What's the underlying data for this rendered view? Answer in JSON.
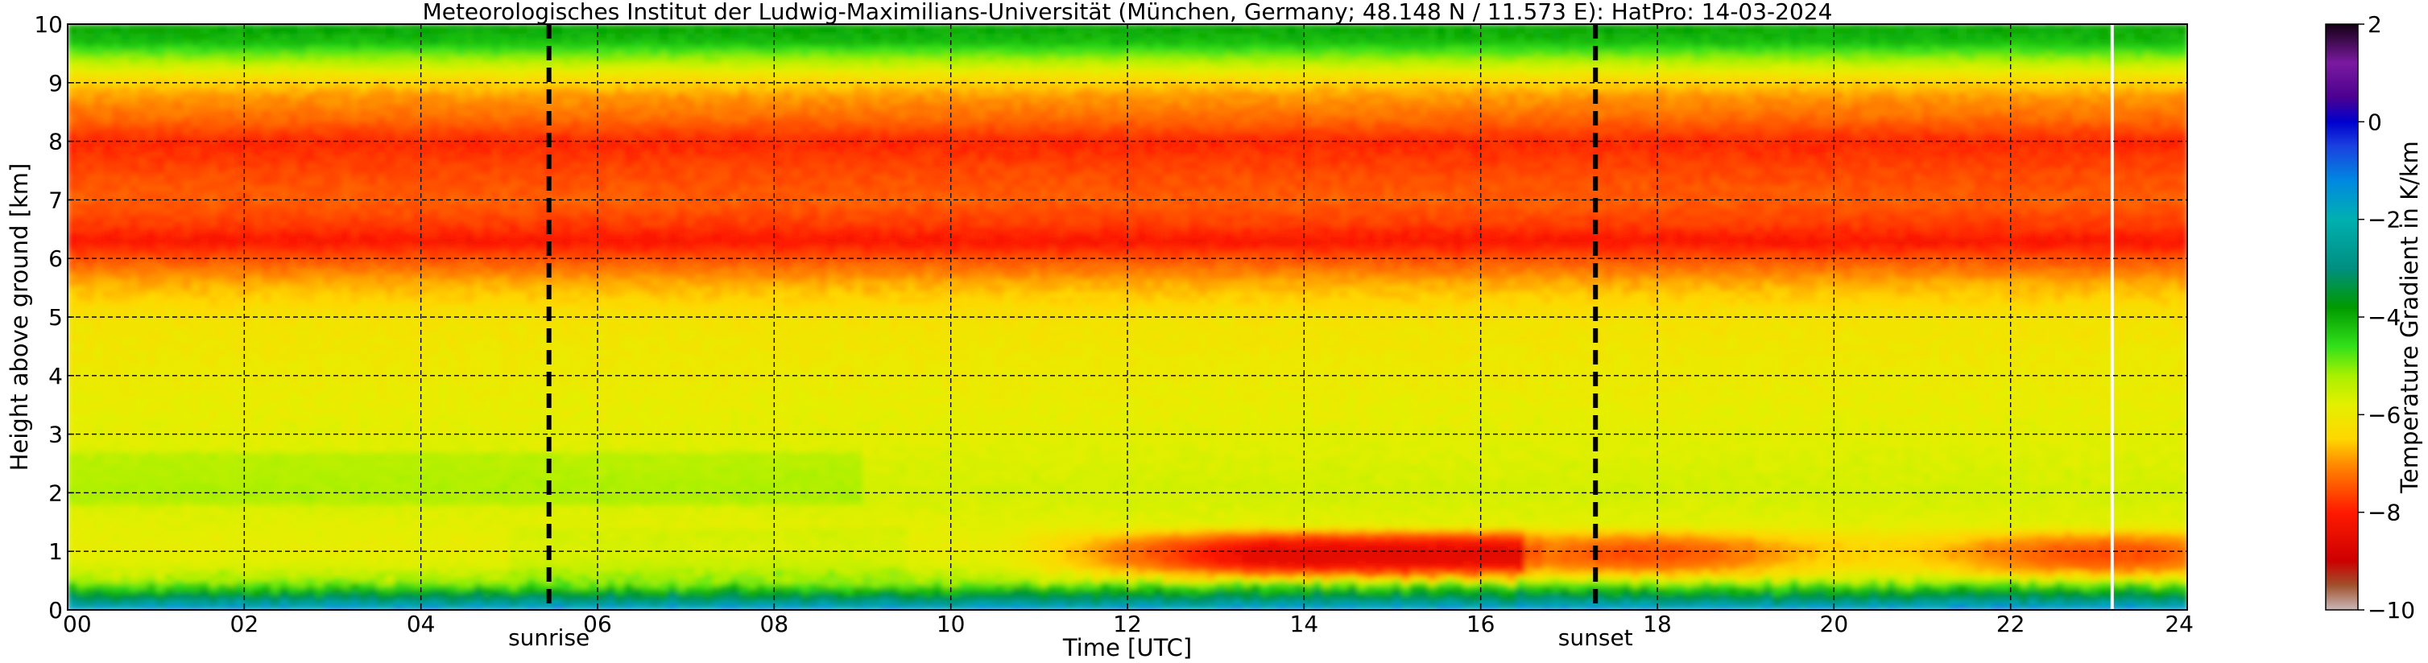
{
  "chart_data": {
    "type": "heatmap",
    "title": "Meteorologisches Institut der Ludwig-Maximilians-Universität (München, Germany; 48.148 N / 11.573 E):    HatPro: 14-03-2024",
    "xlabel": "Time [UTC]",
    "ylabel": "Height above ground [km]",
    "xlim": [
      0,
      24
    ],
    "ylim": [
      0,
      10
    ],
    "x_ticks": [
      "00",
      "02",
      "04",
      "06",
      "08",
      "10",
      "12",
      "14",
      "16",
      "18",
      "20",
      "22",
      "24"
    ],
    "y_ticks": [
      "0",
      "1",
      "2",
      "3",
      "4",
      "5",
      "6",
      "7",
      "8",
      "9",
      "10"
    ],
    "grid": true,
    "markers": [
      {
        "label": "sunrise",
        "x": 5.45
      },
      {
        "label": "sunset",
        "x": 17.3
      }
    ],
    "data_gap_x": 23.15,
    "colorbar": {
      "label": "Temperature Gradient in K/km",
      "range": [
        -10,
        2
      ],
      "ticks": [
        "2",
        "0",
        "−2",
        "−4",
        "−6",
        "−8",
        "−10"
      ],
      "colors": [
        {
          "v": -10.0,
          "c": "#c8b8b8"
        },
        {
          "v": -9.5,
          "c": "#a0522d"
        },
        {
          "v": -9.0,
          "c": "#cc0000"
        },
        {
          "v": -8.0,
          "c": "#ff1a00"
        },
        {
          "v": -7.0,
          "c": "#ff8c00"
        },
        {
          "v": -6.5,
          "c": "#ffd700"
        },
        {
          "v": -5.8,
          "c": "#e4f000"
        },
        {
          "v": -5.2,
          "c": "#a8f000"
        },
        {
          "v": -4.6,
          "c": "#33e01a"
        },
        {
          "v": -3.8,
          "c": "#009a00"
        },
        {
          "v": -3.0,
          "c": "#008f80"
        },
        {
          "v": -2.0,
          "c": "#00b0b0"
        },
        {
          "v": -1.2,
          "c": "#0088e0"
        },
        {
          "v": -0.5,
          "c": "#1a40e0"
        },
        {
          "v": 0.0,
          "c": "#0000cd"
        },
        {
          "v": 0.5,
          "c": "#4b0090"
        },
        {
          "v": 1.2,
          "c": "#7a1aa0"
        },
        {
          "v": 2.0,
          "c": "#140014"
        }
      ]
    },
    "profile": {
      "height_km": [
        0.0,
        0.08,
        0.2,
        0.35,
        0.5,
        0.75,
        1.0,
        1.5,
        2.0,
        2.5,
        3.0,
        4.0,
        5.0,
        5.6,
        6.0,
        6.3,
        6.6,
        7.0,
        7.5,
        8.0,
        8.4,
        8.8,
        9.1,
        9.4,
        9.7,
        10.0
      ],
      "gradient_k_per_km": [
        -1.0,
        -2.0,
        -3.2,
        -4.2,
        -5.2,
        -5.7,
        -5.9,
        -5.8,
        -5.6,
        -5.7,
        -5.8,
        -6.0,
        -6.2,
        -6.8,
        -7.5,
        -8.1,
        -7.7,
        -7.4,
        -7.6,
        -7.9,
        -7.3,
        -6.9,
        -6.3,
        -5.2,
        -4.2,
        -3.9
      ]
    },
    "lowlevel_afternoon": {
      "x_start": 10.5,
      "x_peak_start": 13.5,
      "x_peak_end": 16.5,
      "x_end": 24,
      "height_km": [
        0.6,
        1.3
      ],
      "peak_gradient_k_per_km": -8.6,
      "late_gradient_k_per_km": -8.0
    }
  }
}
